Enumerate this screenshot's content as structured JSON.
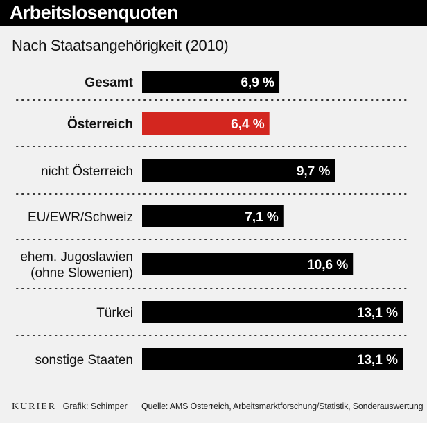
{
  "title": "Arbeitslosenquoten",
  "subtitle": "Nach Staatsangehörigkeit (2010)",
  "footer": {
    "brand": "KURIER",
    "credit": "Grafik: Schimper",
    "source": "Quelle: AMS Österreich, Arbeitsmarktforschung/Statistik, Sonderauswertung"
  },
  "colors": {
    "default_bar": "#000000",
    "highlight_bar": "#d3261f",
    "background": "#f1f1f1"
  },
  "chart_data": {
    "type": "bar",
    "orientation": "horizontal",
    "unit": "%",
    "xlim": [
      0,
      13.1
    ],
    "grid": false,
    "categories": [
      {
        "lines": [
          "Gesamt"
        ],
        "value": 6.9,
        "value_label": "6,9 %",
        "bold": true,
        "color": "#000000"
      },
      {
        "lines": [
          "Österreich"
        ],
        "value": 6.4,
        "value_label": "6,4 %",
        "bold": true,
        "color": "#d3261f"
      },
      {
        "lines": [
          "nicht Österreich"
        ],
        "value": 9.7,
        "value_label": "9,7 %",
        "bold": false,
        "color": "#000000"
      },
      {
        "lines": [
          "EU/EWR/Schweiz"
        ],
        "value": 7.1,
        "value_label": "7,1 %",
        "bold": false,
        "color": "#000000"
      },
      {
        "lines": [
          "ehem. Jugoslawien",
          "(ohne Slowenien)"
        ],
        "value": 10.6,
        "value_label": "10,6 %",
        "bold": false,
        "color": "#000000"
      },
      {
        "lines": [
          "Türkei"
        ],
        "value": 13.1,
        "value_label": "13,1 %",
        "bold": false,
        "color": "#000000"
      },
      {
        "lines": [
          "sonstige Staaten"
        ],
        "value": 13.1,
        "value_label": "13,1 %",
        "bold": false,
        "color": "#000000"
      }
    ]
  }
}
